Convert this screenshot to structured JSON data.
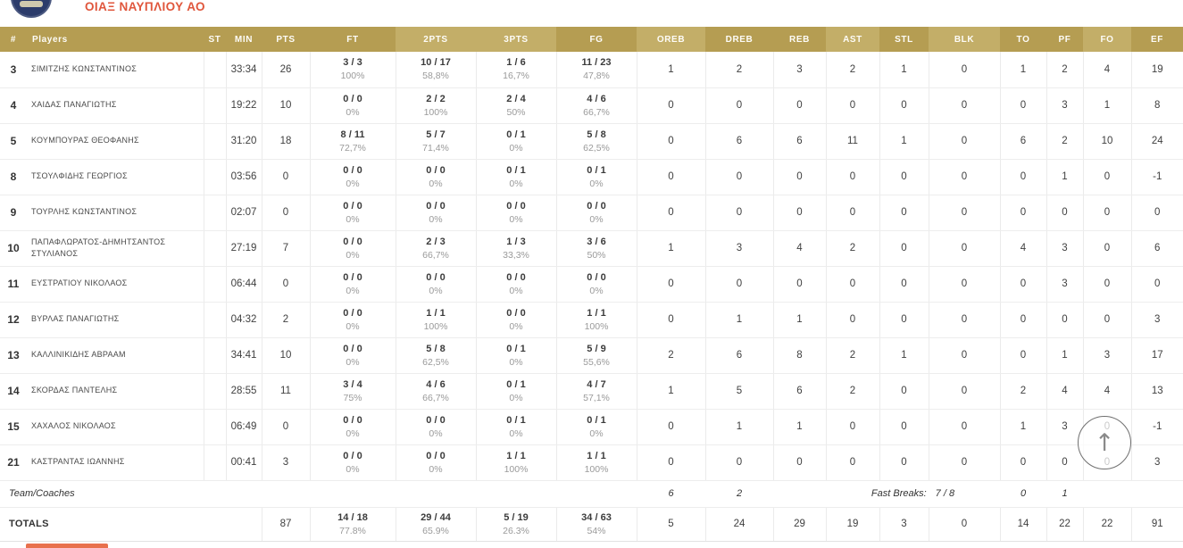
{
  "colors": {
    "accent": "#e0563c",
    "header_gold": "#b59d52",
    "header_gold_light": "#c3ae68",
    "logo_navy": "#2c3c6b",
    "partial_button_orange": "#e8714d"
  },
  "team": {
    "name": "ΟΙΑΞ ΝΑΥΠΛΙΟΥ ΑΟ",
    "logo": "team-crest-circle"
  },
  "table": {
    "columns": [
      "#",
      "Players",
      "ST",
      "MIN",
      "PTS",
      "FT",
      "2PTS",
      "3PTS",
      "FG",
      "OREB",
      "DREB",
      "REB",
      "AST",
      "STL",
      "BLK",
      "TO",
      "PF",
      "FO",
      "EF"
    ],
    "players": [
      {
        "number": "3",
        "name": "ΣΙΜΙΤΖΗΣ ΚΩΝΣΤΑΝΤΙΝΟΣ",
        "st": "",
        "min": "33:34",
        "pts": "26",
        "ft": [
          "3 / 3",
          "100%"
        ],
        "p2": [
          "10 / 17",
          "58,8%"
        ],
        "p3": [
          "1 / 6",
          "16,7%"
        ],
        "fg": [
          "11 / 23",
          "47,8%"
        ],
        "oreb": "1",
        "dreb": "2",
        "reb": "3",
        "ast": "2",
        "stl": "1",
        "blk": "0",
        "to": "1",
        "pf": "2",
        "fo": "4",
        "ef": "19"
      },
      {
        "number": "4",
        "name": "ΧΑΙΔΑΣ ΠΑΝΑΓΙΩΤΗΣ",
        "st": "",
        "min": "19:22",
        "pts": "10",
        "ft": [
          "0 / 0",
          "0%"
        ],
        "p2": [
          "2 / 2",
          "100%"
        ],
        "p3": [
          "2 / 4",
          "50%"
        ],
        "fg": [
          "4 / 6",
          "66,7%"
        ],
        "oreb": "0",
        "dreb": "0",
        "reb": "0",
        "ast": "0",
        "stl": "0",
        "blk": "0",
        "to": "0",
        "pf": "3",
        "fo": "1",
        "ef": "8"
      },
      {
        "number": "5",
        "name": "ΚΟΥΜΠΟΥΡΑΣ ΘΕΟΦΑΝΗΣ",
        "st": "",
        "min": "31:20",
        "pts": "18",
        "ft": [
          "8 / 11",
          "72,7%"
        ],
        "p2": [
          "5 / 7",
          "71,4%"
        ],
        "p3": [
          "0 / 1",
          "0%"
        ],
        "fg": [
          "5 / 8",
          "62,5%"
        ],
        "oreb": "0",
        "dreb": "6",
        "reb": "6",
        "ast": "11",
        "stl": "1",
        "blk": "0",
        "to": "6",
        "pf": "2",
        "fo": "10",
        "ef": "24"
      },
      {
        "number": "8",
        "name": "ΤΣΟΥΛΦΙΔΗΣ ΓΕΩΡΓΙΟΣ",
        "st": "",
        "min": "03:56",
        "pts": "0",
        "ft": [
          "0 / 0",
          "0%"
        ],
        "p2": [
          "0 / 0",
          "0%"
        ],
        "p3": [
          "0 / 1",
          "0%"
        ],
        "fg": [
          "0 / 1",
          "0%"
        ],
        "oreb": "0",
        "dreb": "0",
        "reb": "0",
        "ast": "0",
        "stl": "0",
        "blk": "0",
        "to": "0",
        "pf": "1",
        "fo": "0",
        "ef": "-1"
      },
      {
        "number": "9",
        "name": "ΤΟΥΡΛΗΣ ΚΩΝΣΤΑΝΤΙΝΟΣ",
        "st": "",
        "min": "02:07",
        "pts": "0",
        "ft": [
          "0 / 0",
          "0%"
        ],
        "p2": [
          "0 / 0",
          "0%"
        ],
        "p3": [
          "0 / 0",
          "0%"
        ],
        "fg": [
          "0 / 0",
          "0%"
        ],
        "oreb": "0",
        "dreb": "0",
        "reb": "0",
        "ast": "0",
        "stl": "0",
        "blk": "0",
        "to": "0",
        "pf": "0",
        "fo": "0",
        "ef": "0"
      },
      {
        "number": "10",
        "name": "ΠΑΠΑΦΛΩΡΑΤΟΣ-ΔΗΜΗΤΣΑΝΤΟΣ ΣΤΥΛΙΑΝΟΣ",
        "st": "",
        "min": "27:19",
        "pts": "7",
        "ft": [
          "0 / 0",
          "0%"
        ],
        "p2": [
          "2 / 3",
          "66,7%"
        ],
        "p3": [
          "1 / 3",
          "33,3%"
        ],
        "fg": [
          "3 / 6",
          "50%"
        ],
        "oreb": "1",
        "dreb": "3",
        "reb": "4",
        "ast": "2",
        "stl": "0",
        "blk": "0",
        "to": "4",
        "pf": "3",
        "fo": "0",
        "ef": "6"
      },
      {
        "number": "11",
        "name": "ΕΥΣΤΡΑΤΙΟΥ ΝΙΚΟΛΑΟΣ",
        "st": "",
        "min": "06:44",
        "pts": "0",
        "ft": [
          "0 / 0",
          "0%"
        ],
        "p2": [
          "0 / 0",
          "0%"
        ],
        "p3": [
          "0 / 0",
          "0%"
        ],
        "fg": [
          "0 / 0",
          "0%"
        ],
        "oreb": "0",
        "dreb": "0",
        "reb": "0",
        "ast": "0",
        "stl": "0",
        "blk": "0",
        "to": "0",
        "pf": "3",
        "fo": "0",
        "ef": "0"
      },
      {
        "number": "12",
        "name": "ΒΥΡΛΑΣ ΠΑΝΑΓΙΩΤΗΣ",
        "st": "",
        "min": "04:32",
        "pts": "2",
        "ft": [
          "0 / 0",
          "0%"
        ],
        "p2": [
          "1 / 1",
          "100%"
        ],
        "p3": [
          "0 / 0",
          "0%"
        ],
        "fg": [
          "1 / 1",
          "100%"
        ],
        "oreb": "0",
        "dreb": "1",
        "reb": "1",
        "ast": "0",
        "stl": "0",
        "blk": "0",
        "to": "0",
        "pf": "0",
        "fo": "0",
        "ef": "3"
      },
      {
        "number": "13",
        "name": "ΚΑΛΛΙΝΙΚΙΔΗΣ ΑΒΡΑΑΜ",
        "st": "",
        "min": "34:41",
        "pts": "10",
        "ft": [
          "0 / 0",
          "0%"
        ],
        "p2": [
          "5 / 8",
          "62,5%"
        ],
        "p3": [
          "0 / 1",
          "0%"
        ],
        "fg": [
          "5 / 9",
          "55,6%"
        ],
        "oreb": "2",
        "dreb": "6",
        "reb": "8",
        "ast": "2",
        "stl": "1",
        "blk": "0",
        "to": "0",
        "pf": "1",
        "fo": "3",
        "ef": "17"
      },
      {
        "number": "14",
        "name": "ΣΚΟΡΔΑΣ ΠΑΝΤΕΛΗΣ",
        "st": "",
        "min": "28:55",
        "pts": "11",
        "ft": [
          "3 / 4",
          "75%"
        ],
        "p2": [
          "4 / 6",
          "66,7%"
        ],
        "p3": [
          "0 / 1",
          "0%"
        ],
        "fg": [
          "4 / 7",
          "57,1%"
        ],
        "oreb": "1",
        "dreb": "5",
        "reb": "6",
        "ast": "2",
        "stl": "0",
        "blk": "0",
        "to": "2",
        "pf": "4",
        "fo": "4",
        "ef": "13"
      },
      {
        "number": "15",
        "name": "ΧΑΧΑΛΟΣ ΝΙΚΟΛΑΟΣ",
        "st": "",
        "min": "06:49",
        "pts": "0",
        "ft": [
          "0 / 0",
          "0%"
        ],
        "p2": [
          "0 / 0",
          "0%"
        ],
        "p3": [
          "0 / 1",
          "0%"
        ],
        "fg": [
          "0 / 1",
          "0%"
        ],
        "oreb": "0",
        "dreb": "1",
        "reb": "1",
        "ast": "0",
        "stl": "0",
        "blk": "0",
        "to": "1",
        "pf": "3",
        "fo": "0",
        "ef": "-1"
      },
      {
        "number": "21",
        "name": "ΚΑΣΤΡΑΝΤΑΣ ΙΩΑΝΝΗΣ",
        "st": "",
        "min": "00:41",
        "pts": "3",
        "ft": [
          "0 / 0",
          "0%"
        ],
        "p2": [
          "0 / 0",
          "0%"
        ],
        "p3": [
          "1 / 1",
          "100%"
        ],
        "fg": [
          "1 / 1",
          "100%"
        ],
        "oreb": "0",
        "dreb": "0",
        "reb": "0",
        "ast": "0",
        "stl": "0",
        "blk": "0",
        "to": "0",
        "pf": "0",
        "fo": "0",
        "ef": "3"
      }
    ],
    "team_row": {
      "label": "Team/Coaches",
      "oreb": "6",
      "dreb": "2",
      "fast_breaks_label": "Fast Breaks:",
      "fast_breaks_value": "7 / 8",
      "to": "0",
      "pf": "1"
    },
    "totals": {
      "label": "TOTALS",
      "pts": "87",
      "ft": [
        "14 / 18",
        "77.8%"
      ],
      "p2": [
        "29 / 44",
        "65.9%"
      ],
      "p3": [
        "5 / 19",
        "26.3%"
      ],
      "fg": [
        "34 / 63",
        "54%"
      ],
      "oreb": "5",
      "dreb": "24",
      "reb": "29",
      "ast": "19",
      "stl": "3",
      "blk": "0",
      "to": "14",
      "pf": "22",
      "fo": "22",
      "ef": "91"
    }
  },
  "scroll_top": {
    "icon": "up-arrow-icon",
    "glyph": "↑"
  }
}
